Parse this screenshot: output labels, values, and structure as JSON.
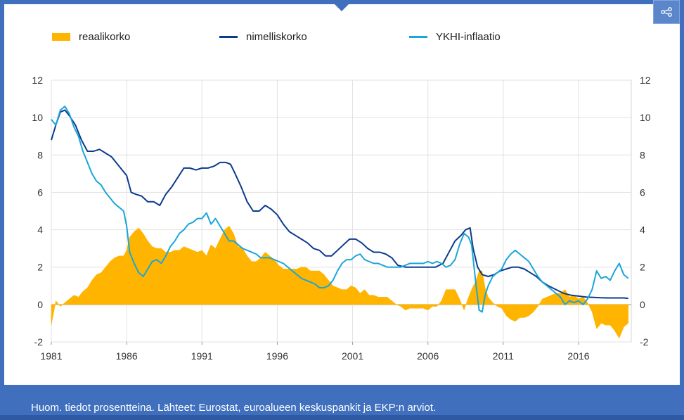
{
  "legend": [
    {
      "label": "reaalikorko",
      "color": "#ffb400"
    },
    {
      "label": "nimelliskorko",
      "color": "#0b3b8c"
    },
    {
      "label": "YKHI-inflaatio",
      "color": "#1aa6d9"
    }
  ],
  "footer": {
    "note": "Huom. tiedot prosentteina. Lähteet: Eurostat, euroalueen keskuspankit ja EKP:n arviot."
  },
  "chart_data": {
    "type": "line",
    "title": "",
    "xlabel": "",
    "ylabel": "",
    "xlim": [
      1981,
      2019.5
    ],
    "ylim": [
      -2,
      12
    ],
    "x_ticks": [
      "1981",
      "1986",
      "1991",
      "1996",
      "2001",
      "2006",
      "2011",
      "2016"
    ],
    "y_ticks": [
      "-2",
      "0",
      "2",
      "4",
      "6",
      "8",
      "10",
      "12"
    ],
    "grid": true,
    "legend_position": "top",
    "series": [
      {
        "name": "nimelliskorko",
        "type": "line",
        "color": "#0b3b8c",
        "x": [
          1981.0,
          1981.3,
          1981.6,
          1981.9,
          1982.2,
          1982.6,
          1983.0,
          1983.4,
          1983.8,
          1984.2,
          1984.6,
          1985.0,
          1985.4,
          1985.8,
          1986.0,
          1986.3,
          1986.6,
          1987.0,
          1987.4,
          1987.8,
          1988.2,
          1988.6,
          1989.0,
          1989.4,
          1989.8,
          1990.2,
          1990.6,
          1991.0,
          1991.4,
          1991.8,
          1992.2,
          1992.6,
          1992.9,
          1993.2,
          1993.6,
          1994.0,
          1994.4,
          1994.8,
          1995.2,
          1995.6,
          1996.0,
          1996.4,
          1996.8,
          1997.2,
          1997.6,
          1998.0,
          1998.4,
          1998.8,
          1999.2,
          1999.6,
          2000.0,
          2000.4,
          2000.8,
          2001.2,
          2001.6,
          2002.0,
          2002.4,
          2002.8,
          2003.2,
          2003.6,
          2004.0,
          2004.5,
          2005.0,
          2005.5,
          2006.0,
          2006.5,
          2007.0,
          2007.4,
          2007.8,
          2008.2,
          2008.5,
          2008.8,
          2009.0,
          2009.3,
          2009.6,
          2010.0,
          2010.4,
          2010.8,
          2011.2,
          2011.6,
          2012.0,
          2012.4,
          2012.8,
          2013.2,
          2013.6,
          2014.0,
          2014.5,
          2015.0,
          2015.5,
          2016.0,
          2016.5,
          2017.0,
          2017.5,
          2018.0,
          2018.5,
          2019.0,
          2019.3
        ],
        "y": [
          8.8,
          9.6,
          10.3,
          10.4,
          10.1,
          9.6,
          8.8,
          8.2,
          8.2,
          8.3,
          8.1,
          7.9,
          7.5,
          7.1,
          6.9,
          6.0,
          5.9,
          5.8,
          5.5,
          5.5,
          5.3,
          5.9,
          6.3,
          6.8,
          7.3,
          7.3,
          7.2,
          7.3,
          7.3,
          7.4,
          7.6,
          7.6,
          7.5,
          7.0,
          6.3,
          5.5,
          5.0,
          5.0,
          5.3,
          5.1,
          4.8,
          4.3,
          3.9,
          3.7,
          3.5,
          3.3,
          3.0,
          2.9,
          2.6,
          2.6,
          2.9,
          3.2,
          3.5,
          3.5,
          3.3,
          3.0,
          2.8,
          2.8,
          2.7,
          2.5,
          2.1,
          2.0,
          2.0,
          2.0,
          2.0,
          2.0,
          2.2,
          2.8,
          3.4,
          3.7,
          4.0,
          4.1,
          3.0,
          2.0,
          1.6,
          1.5,
          1.6,
          1.8,
          1.9,
          2.0,
          2.0,
          1.9,
          1.7,
          1.5,
          1.2,
          1.0,
          0.8,
          0.6,
          0.5,
          0.45,
          0.4,
          0.38,
          0.36,
          0.35,
          0.35,
          0.35,
          0.33
        ]
      },
      {
        "name": "YKHI-inflaatio",
        "type": "line",
        "color": "#1aa6d9",
        "x": [
          1981.0,
          1981.3,
          1981.6,
          1981.9,
          1982.2,
          1982.5,
          1982.8,
          1983.1,
          1983.4,
          1983.7,
          1984.0,
          1984.3,
          1984.6,
          1984.9,
          1985.2,
          1985.5,
          1985.8,
          1986.0,
          1986.2,
          1986.5,
          1986.8,
          1987.1,
          1987.4,
          1987.7,
          1988.0,
          1988.3,
          1988.6,
          1988.9,
          1989.2,
          1989.5,
          1989.8,
          1990.1,
          1990.4,
          1990.7,
          1991.0,
          1991.3,
          1991.6,
          1991.9,
          1992.2,
          1992.5,
          1992.8,
          1993.1,
          1993.4,
          1993.7,
          1994.0,
          1994.3,
          1994.6,
          1994.9,
          1995.2,
          1995.5,
          1995.8,
          1996.1,
          1996.4,
          1996.7,
          1997.0,
          1997.3,
          1997.6,
          1997.9,
          1998.2,
          1998.5,
          1998.8,
          1999.1,
          1999.4,
          1999.7,
          2000.0,
          2000.3,
          2000.6,
          2000.9,
          2001.2,
          2001.5,
          2001.8,
          2002.1,
          2002.4,
          2002.7,
          2003.0,
          2003.3,
          2003.6,
          2003.9,
          2004.2,
          2004.5,
          2004.8,
          2005.1,
          2005.4,
          2005.7,
          2006.0,
          2006.3,
          2006.6,
          2006.9,
          2007.2,
          2007.5,
          2007.8,
          2008.1,
          2008.4,
          2008.7,
          2008.9,
          2009.2,
          2009.4,
          2009.6,
          2009.8,
          2010.0,
          2010.3,
          2010.6,
          2010.9,
          2011.2,
          2011.5,
          2011.8,
          2012.1,
          2012.4,
          2012.7,
          2013.0,
          2013.3,
          2013.6,
          2013.9,
          2014.2,
          2014.5,
          2014.8,
          2015.1,
          2015.4,
          2015.7,
          2016.0,
          2016.3,
          2016.6,
          2016.9,
          2017.2,
          2017.5,
          2017.8,
          2018.1,
          2018.4,
          2018.7,
          2019.0,
          2019.3
        ],
        "y": [
          9.9,
          9.6,
          10.4,
          10.6,
          10.2,
          9.5,
          9.0,
          8.2,
          7.6,
          7.0,
          6.6,
          6.4,
          6.0,
          5.7,
          5.4,
          5.2,
          5.0,
          4.2,
          2.8,
          2.2,
          1.7,
          1.5,
          1.9,
          2.3,
          2.4,
          2.2,
          2.6,
          3.1,
          3.4,
          3.8,
          4.0,
          4.3,
          4.4,
          4.6,
          4.6,
          4.9,
          4.3,
          4.6,
          4.2,
          3.8,
          3.4,
          3.4,
          3.2,
          3.0,
          2.9,
          2.8,
          2.7,
          2.5,
          2.5,
          2.5,
          2.4,
          2.3,
          2.2,
          2.0,
          1.8,
          1.6,
          1.4,
          1.3,
          1.2,
          1.1,
          0.9,
          0.9,
          1.0,
          1.3,
          1.8,
          2.2,
          2.4,
          2.4,
          2.6,
          2.7,
          2.4,
          2.3,
          2.2,
          2.2,
          2.1,
          2.0,
          2.0,
          2.0,
          2.0,
          2.1,
          2.2,
          2.2,
          2.2,
          2.2,
          2.3,
          2.2,
          2.3,
          2.2,
          2.0,
          2.1,
          2.4,
          3.2,
          3.8,
          3.6,
          3.2,
          1.0,
          -0.3,
          -0.4,
          0.5,
          1.0,
          1.5,
          1.7,
          1.9,
          2.4,
          2.7,
          2.9,
          2.7,
          2.5,
          2.3,
          1.9,
          1.5,
          1.2,
          1.0,
          0.8,
          0.6,
          0.4,
          0.0,
          0.2,
          0.1,
          0.2,
          0.0,
          0.3,
          0.8,
          1.8,
          1.4,
          1.5,
          1.3,
          1.8,
          2.2,
          1.6,
          1.4
        ]
      },
      {
        "name": "reaalikorko",
        "type": "area",
        "color": "#ffb400",
        "x": [
          1981.0,
          1981.3,
          1981.6,
          1981.9,
          1982.2,
          1982.5,
          1982.8,
          1983.1,
          1983.4,
          1983.7,
          1984.0,
          1984.3,
          1984.6,
          1984.9,
          1985.2,
          1985.5,
          1985.8,
          1986.0,
          1986.2,
          1986.5,
          1986.8,
          1987.1,
          1987.4,
          1987.7,
          1988.0,
          1988.3,
          1988.6,
          1988.9,
          1989.2,
          1989.5,
          1989.8,
          1990.1,
          1990.4,
          1990.7,
          1991.0,
          1991.3,
          1991.6,
          1991.9,
          1992.2,
          1992.5,
          1992.8,
          1993.1,
          1993.4,
          1993.7,
          1994.0,
          1994.3,
          1994.6,
          1994.9,
          1995.2,
          1995.5,
          1995.8,
          1996.1,
          1996.4,
          1996.7,
          1997.0,
          1997.3,
          1997.6,
          1997.9,
          1998.2,
          1998.5,
          1998.8,
          1999.1,
          1999.4,
          1999.7,
          2000.0,
          2000.3,
          2000.6,
          2000.9,
          2001.2,
          2001.5,
          2001.8,
          2002.1,
          2002.4,
          2002.7,
          2003.0,
          2003.3,
          2003.6,
          2003.9,
          2004.2,
          2004.5,
          2004.8,
          2005.1,
          2005.4,
          2005.7,
          2006.0,
          2006.3,
          2006.6,
          2006.9,
          2007.2,
          2007.5,
          2007.8,
          2008.1,
          2008.4,
          2008.7,
          2008.9,
          2009.2,
          2009.4,
          2009.6,
          2009.8,
          2010.0,
          2010.3,
          2010.6,
          2010.9,
          2011.2,
          2011.5,
          2011.8,
          2012.1,
          2012.4,
          2012.7,
          2013.0,
          2013.3,
          2013.6,
          2013.9,
          2014.2,
          2014.5,
          2014.8,
          2015.1,
          2015.4,
          2015.7,
          2016.0,
          2016.3,
          2016.6,
          2016.9,
          2017.2,
          2017.5,
          2017.8,
          2018.1,
          2018.4,
          2018.7,
          2019.0,
          2019.3
        ],
        "y": [
          -1.1,
          0.2,
          -0.1,
          0.1,
          0.3,
          0.5,
          0.4,
          0.7,
          0.9,
          1.3,
          1.6,
          1.7,
          2.0,
          2.3,
          2.5,
          2.6,
          2.6,
          2.9,
          3.6,
          3.9,
          4.1,
          3.8,
          3.4,
          3.1,
          3.0,
          3.0,
          2.8,
          2.8,
          2.9,
          2.9,
          3.1,
          3.0,
          2.9,
          2.8,
          2.9,
          2.6,
          3.2,
          3.0,
          3.5,
          4.0,
          4.2,
          3.8,
          3.1,
          3.0,
          2.6,
          2.3,
          2.3,
          2.5,
          2.8,
          2.6,
          2.4,
          2.1,
          1.9,
          1.9,
          1.9,
          1.9,
          2.0,
          2.0,
          1.8,
          1.8,
          1.8,
          1.6,
          1.3,
          1.0,
          0.9,
          0.8,
          0.8,
          1.0,
          0.9,
          0.6,
          0.8,
          0.5,
          0.5,
          0.4,
          0.4,
          0.4,
          0.2,
          0.0,
          -0.1,
          -0.3,
          -0.2,
          -0.2,
          -0.2,
          -0.2,
          -0.3,
          -0.1,
          -0.1,
          0.2,
          0.8,
          0.8,
          0.8,
          0.3,
          -0.3,
          0.4,
          0.8,
          1.3,
          1.8,
          1.8,
          0.9,
          0.4,
          0.1,
          -0.1,
          -0.2,
          -0.6,
          -0.8,
          -0.9,
          -0.7,
          -0.7,
          -0.6,
          -0.4,
          -0.1,
          0.3,
          0.4,
          0.5,
          0.6,
          0.6,
          0.8,
          0.4,
          0.5,
          0.3,
          0.4,
          0.1,
          -0.4,
          -1.3,
          -1.0,
          -1.1,
          -1.1,
          -1.4,
          -1.8,
          -1.2,
          -1.0
        ]
      }
    ]
  }
}
